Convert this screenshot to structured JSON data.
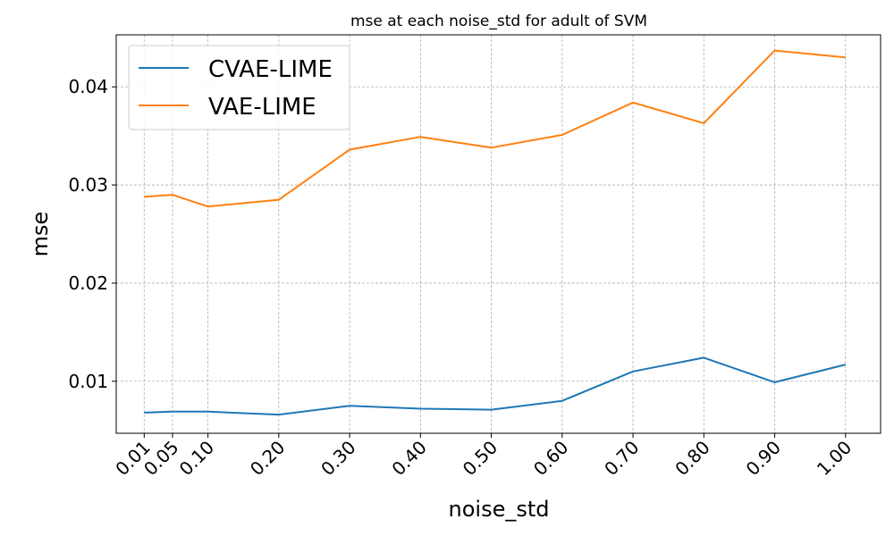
{
  "chart_data": {
    "type": "line",
    "title": "mse at each noise_std for adult of SVM",
    "xlabel": "noise_std",
    "ylabel": "mse",
    "x": [
      0.01,
      0.05,
      0.1,
      0.2,
      0.3,
      0.4,
      0.5,
      0.6,
      0.7,
      0.8,
      0.9,
      1.0
    ],
    "x_tick_labels": [
      "0.01",
      "0.05",
      "0.10",
      "0.20",
      "0.30",
      "0.40",
      "0.50",
      "0.60",
      "0.70",
      "0.80",
      "0.90",
      "1.00"
    ],
    "y_ticks": [
      0.01,
      0.02,
      0.03,
      0.04
    ],
    "y_tick_labels": [
      "0.01",
      "0.02",
      "0.03",
      "0.04"
    ],
    "xlim": [
      -0.0295,
      1.0495
    ],
    "ylim": [
      0.0047,
      0.0453
    ],
    "grid": true,
    "legend_position": "top-left",
    "series": [
      {
        "name": "CVAE-LIME",
        "color": "#1f77b4",
        "values": [
          0.0068,
          0.0069,
          0.0069,
          0.0066,
          0.0075,
          0.0072,
          0.0071,
          0.008,
          0.011,
          0.0124,
          0.0099,
          0.0117
        ]
      },
      {
        "name": "VAE-LIME",
        "color": "#ff7f0e",
        "values": [
          0.0288,
          0.029,
          0.0278,
          0.0285,
          0.0336,
          0.0349,
          0.0338,
          0.0351,
          0.0384,
          0.0363,
          0.0437,
          0.043
        ]
      }
    ]
  }
}
